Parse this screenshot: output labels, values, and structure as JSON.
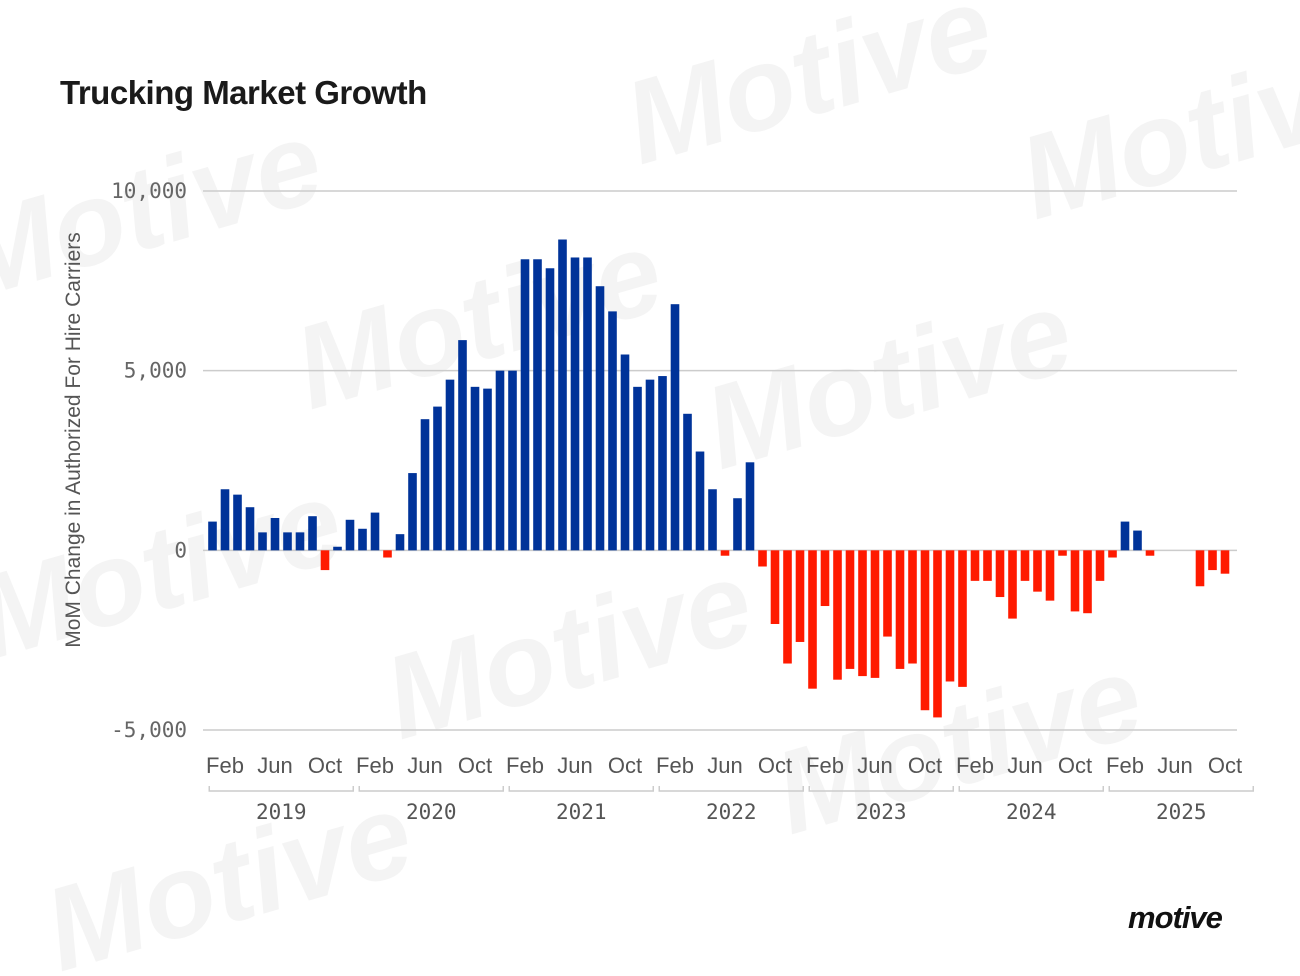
{
  "title": "Trucking Market Growth",
  "logo_text": "motive",
  "watermark_text": "Motive",
  "colors": {
    "positive": "#003399",
    "negative": "#ff1a00",
    "grid": "#cccccc",
    "text": "#555555"
  },
  "chart_data": {
    "type": "bar",
    "title": "Trucking Market Growth",
    "ylabel": "MoM Change in Authorized For Hire Carriers",
    "xlabel": "",
    "ylim": [
      -5000,
      10000
    ],
    "yticks": [
      10000,
      5000,
      0,
      -5000
    ],
    "ytick_labels": [
      "10,000",
      "5,000",
      "0",
      "-5,000"
    ],
    "month_tick_labels": [
      "Feb",
      "Jun",
      "Oct"
    ],
    "years": [
      "2019",
      "2020",
      "2021",
      "2022",
      "2023",
      "2024",
      "2025"
    ],
    "start_month": "2019-01",
    "values": [
      800,
      1700,
      1550,
      1200,
      500,
      900,
      500,
      500,
      950,
      -550,
      100,
      850,
      600,
      1050,
      -200,
      450,
      2150,
      3650,
      4000,
      4750,
      5850,
      4550,
      4500,
      5000,
      5000,
      8100,
      8100,
      7850,
      8650,
      8150,
      8150,
      7350,
      6650,
      5450,
      4550,
      4750,
      4850,
      6850,
      3800,
      2750,
      1700,
      -150,
      1450,
      2450,
      -450,
      -2050,
      -3150,
      -2550,
      -3850,
      -1550,
      -3600,
      -3300,
      -3500,
      -3550,
      -2400,
      -3300,
      -3150,
      -4450,
      -4650,
      -3650,
      -3800,
      -850,
      -850,
      -1300,
      -1900,
      -850,
      -1150,
      -1400,
      -150,
      -1700,
      -1750,
      -850,
      -200,
      800,
      550,
      -150,
      0,
      0,
      0,
      -1000,
      -550,
      -650
    ]
  }
}
